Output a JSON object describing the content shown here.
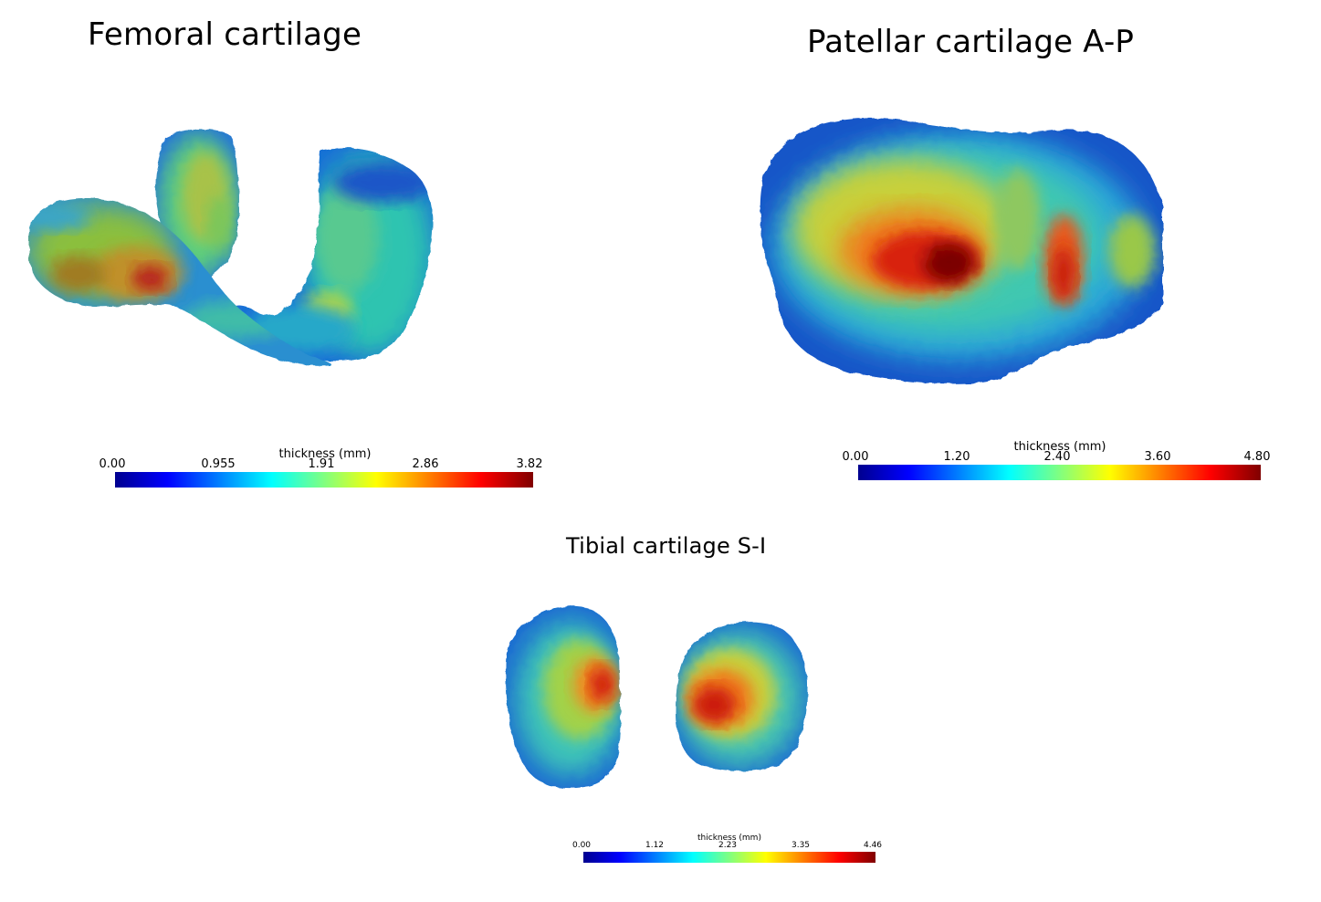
{
  "titles": {
    "femoral": "Femoral cartilage",
    "patellar": "Patellar cartilage A-P",
    "tibial": "Tibial cartilage S-I"
  },
  "colorbars": {
    "femoral": {
      "label": "thickness (mm)",
      "ticks": [
        "0.00",
        "0.955",
        "1.91",
        "2.86",
        "3.82"
      ]
    },
    "patellar": {
      "label": "thickness (mm)",
      "ticks": [
        "0.00",
        "1.20",
        "2.40",
        "3.60",
        "4.80"
      ]
    },
    "tibial": {
      "label": "thickness (mm)",
      "ticks": [
        "0.00",
        "1.12",
        "2.23",
        "3.35",
        "4.46"
      ]
    }
  },
  "colormap": [
    "#00008f",
    "#0000ff",
    "#0080ff",
    "#00ffff",
    "#80ff80",
    "#ffff00",
    "#ff8000",
    "#ff0000",
    "#800000"
  ]
}
